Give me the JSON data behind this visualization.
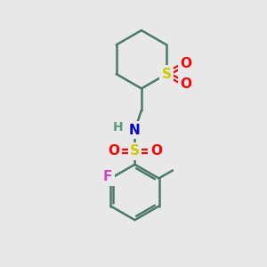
{
  "background_color": "#e8e8e8",
  "bond_color": "#4a7a6a",
  "bond_width": 1.8,
  "atom_colors": {
    "S": "#cccc00",
    "O": "#ff0000",
    "N": "#0000cc",
    "F": "#cc44cc",
    "H": "#5a9a7a",
    "C": "#4a7a6a"
  },
  "font_size": 11,
  "figsize": [
    3.0,
    3.0
  ],
  "dpi": 100,
  "xlim": [
    0,
    10
  ],
  "ylim": [
    0,
    10
  ]
}
